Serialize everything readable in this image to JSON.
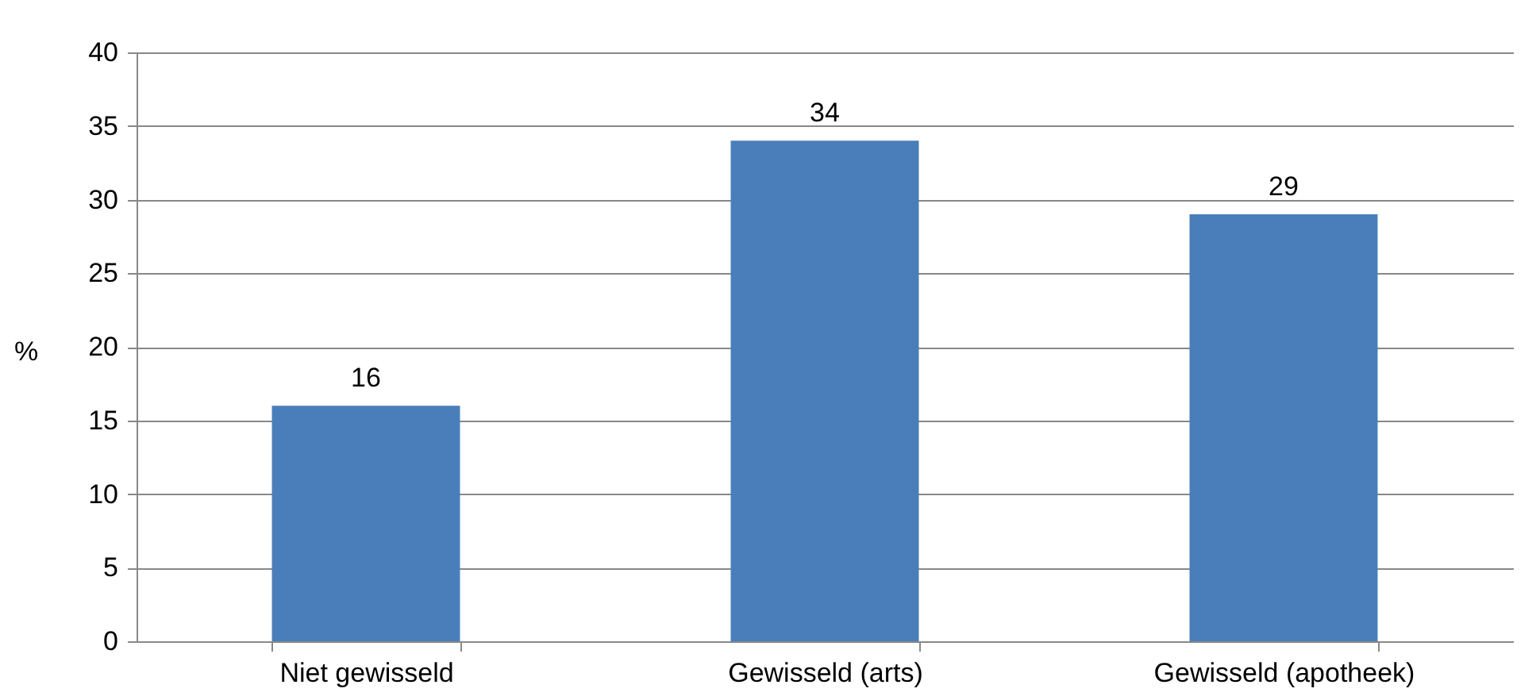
{
  "chart_data": {
    "type": "bar",
    "ylabel": "%",
    "categories": [
      "Niet gewisseld",
      "Gewisseld (arts)",
      "Gewisseld (apotheek)"
    ],
    "values": [
      16,
      34,
      29
    ],
    "color": "#4a7ebb",
    "ylim": [
      0,
      40
    ],
    "yticks": [
      0,
      5,
      10,
      15,
      20,
      25,
      30,
      35,
      40
    ],
    "grid": "y",
    "data_labels": true
  }
}
